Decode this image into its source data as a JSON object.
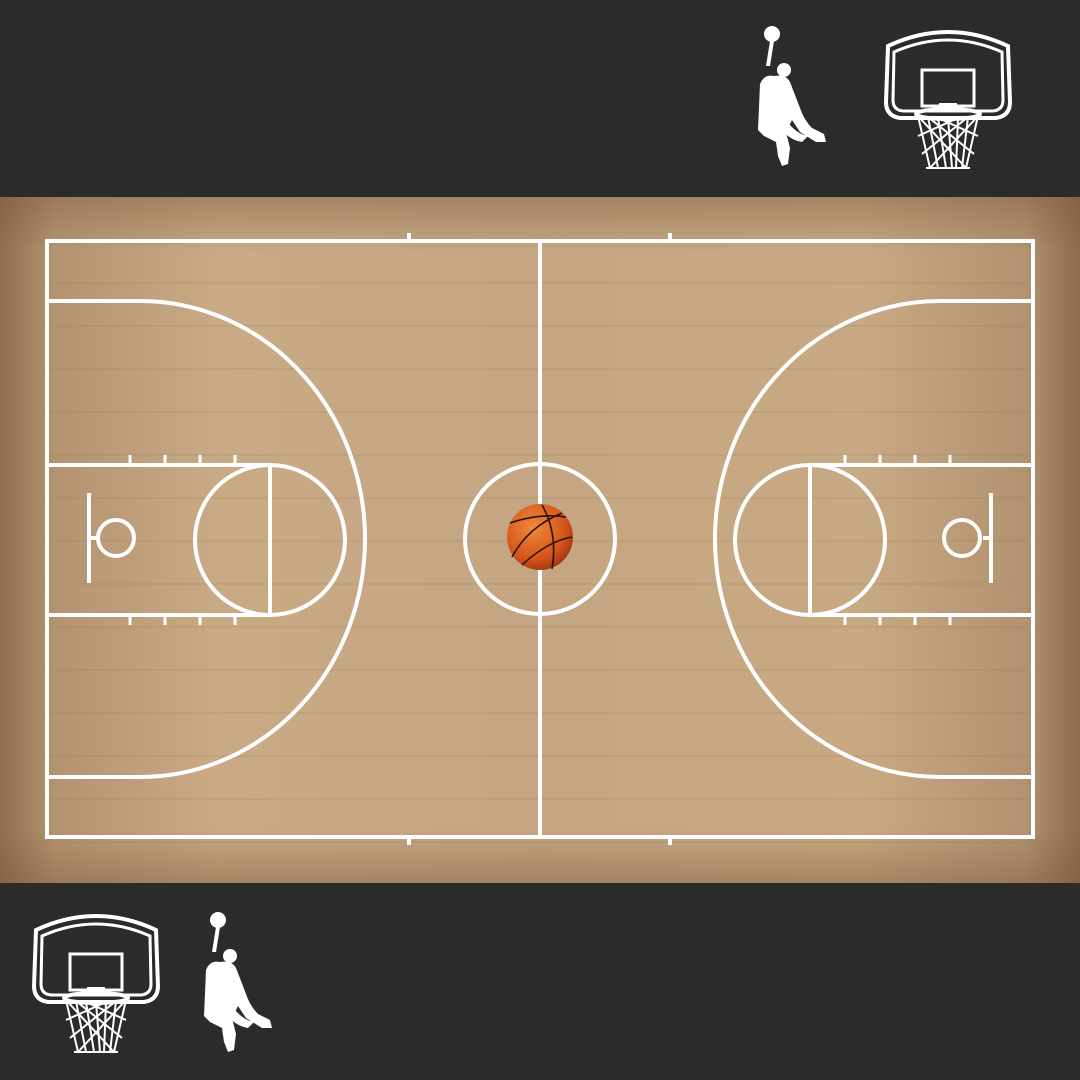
{
  "scene": {
    "background_color": "#2b2b2b",
    "court_wood_light": "#c6a882",
    "court_wood_dark": "#8b6c4c",
    "line_color": "#ffffff",
    "ball_color": "#d9571b"
  },
  "icons": {
    "top_player": "dunking-player-icon",
    "top_hoop": "basketball-hoop-icon",
    "bottom_hoop": "basketball-hoop-icon",
    "bottom_player": "dunking-player-icon",
    "ball": "basketball-icon"
  }
}
